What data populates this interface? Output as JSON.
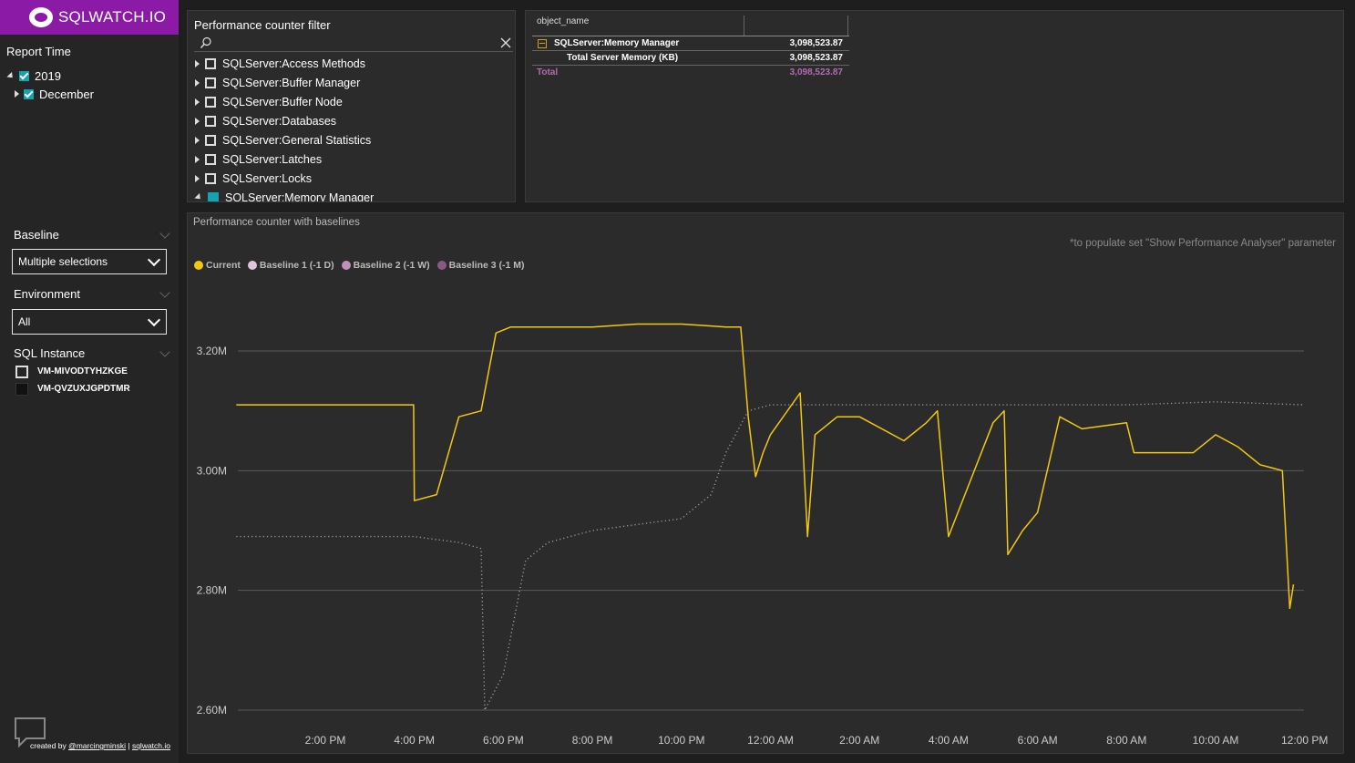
{
  "brand": {
    "name": "SQLWATCH.IO"
  },
  "report_time": {
    "title": "Report Time",
    "year": "2019",
    "month": "December"
  },
  "baseline": {
    "title": "Baseline",
    "value": "Multiple selections"
  },
  "environment": {
    "title": "Environment",
    "value": "All"
  },
  "sql_instance": {
    "title": "SQL Instance",
    "items": [
      "VM-MIVODTYHZKGE",
      "VM-QVZUXJGPDTMR"
    ]
  },
  "footer": {
    "prefix": "created by ",
    "author": "@marcingminski",
    "sep": " | ",
    "site": "sqlwatch.io"
  },
  "counter_filter": {
    "title": "Performance counter filter",
    "search_placeholder": "",
    "items": [
      "SQLServer:Access Methods",
      "SQLServer:Buffer Manager",
      "SQLServer:Buffer Node",
      "SQLServer:Databases",
      "SQLServer:General Statistics",
      "SQLServer:Latches",
      "SQLServer:Locks",
      "SQLServer:Memory Manager"
    ]
  },
  "matrix": {
    "col_header": "object_name",
    "rows": [
      {
        "label": "SQLServer:Memory Manager",
        "value": "3,098,523.87"
      },
      {
        "label": "Total Server Memory (KB)",
        "value": "3,098,523.87"
      }
    ],
    "total_label": "Total",
    "total_value": "3,098,523.87"
  },
  "chart_panel": {
    "title": "Performance counter with baselines",
    "note": "*to populate set \"Show Performance Analyser\" parameter"
  },
  "colors": {
    "current": "#f2c811",
    "baseline1": "#e0c3dc",
    "baseline2": "#c08fbc",
    "baseline3": "#8a5a86",
    "baseline_dots": "#9a9a9a",
    "total": "#b36bb1",
    "accent": "#8b1aa6"
  },
  "chart_data": {
    "type": "line",
    "title": "",
    "xlabel": "",
    "ylabel": "",
    "legend": [
      "Current",
      "Baseline 1 (-1 D)",
      "Baseline 2 (-1 W)",
      "Baseline 3 (-1 M)"
    ],
    "legend_position": "top-left",
    "ylim": [
      2.6,
      3.3
    ],
    "y_unit": "M",
    "y_ticks": [
      "2.60M",
      "2.80M",
      "3.00M",
      "3.20M"
    ],
    "x_ticks": [
      "2:00 PM",
      "4:00 PM",
      "6:00 PM",
      "8:00 PM",
      "10:00 PM",
      "12:00 AM",
      "2:00 AM",
      "4:00 AM",
      "6:00 AM",
      "8:00 AM",
      "10:00 AM",
      "12:00 PM"
    ],
    "grid": true,
    "series": [
      {
        "name": "Current",
        "x": [
          "12:00 PM",
          "2:00 PM",
          "3:59 PM",
          "4:00 PM",
          "4:30 PM",
          "5:00 PM",
          "5:30 PM",
          "5:50 PM",
          "6:10 PM",
          "7:00 PM",
          "8:00 PM",
          "9:00 PM",
          "10:00 PM",
          "11:00 PM",
          "11:20 PM",
          "11:30 PM",
          "11:40 PM",
          "11:50 PM",
          "12:00 AM",
          "12:40 AM",
          "12:50 AM",
          "1:00 AM",
          "1:30 AM",
          "2:00 AM",
          "3:00 AM",
          "3:30 AM",
          "3:45 AM",
          "4:00 AM",
          "5:00 AM",
          "5:15 AM",
          "5:20 AM",
          "5:40 AM",
          "6:00 AM",
          "6:30 AM",
          "7:00 AM",
          "8:00 AM",
          "8:10 AM",
          "9:00 AM",
          "9:30 AM",
          "10:00 AM",
          "10:30 AM",
          "11:00 AM",
          "11:30 AM",
          "11:40 AM",
          "11:45 AM"
        ],
        "values": [
          3.11,
          3.11,
          3.11,
          2.95,
          2.96,
          3.09,
          3.1,
          3.23,
          3.24,
          3.24,
          3.24,
          3.245,
          3.245,
          3.24,
          3.24,
          3.09,
          2.99,
          3.03,
          3.06,
          3.13,
          2.89,
          3.06,
          3.09,
          3.09,
          3.05,
          3.08,
          3.1,
          2.89,
          3.08,
          3.1,
          2.86,
          2.9,
          2.93,
          3.09,
          3.07,
          3.08,
          3.03,
          3.03,
          3.03,
          3.06,
          3.04,
          3.01,
          3.0,
          2.77,
          2.81
        ]
      },
      {
        "name": "Baseline 1 (-1 D)",
        "x": [
          "12:00 PM",
          "2:00 PM",
          "4:00 PM",
          "5:00 PM",
          "5:30 PM",
          "5:35 PM",
          "6:00 PM",
          "6:30 PM",
          "7:00 PM",
          "8:00 PM",
          "9:00 PM",
          "10:00 PM",
          "10:30 PM",
          "10:40 PM",
          "11:00 PM",
          "11:30 PM",
          "12:00 AM",
          "2:00 AM",
          "4:00 AM",
          "6:00 AM",
          "8:00 AM",
          "10:00 AM",
          "12:00 PM"
        ],
        "values": [
          2.89,
          2.89,
          2.89,
          2.88,
          2.87,
          2.6,
          2.66,
          2.85,
          2.88,
          2.9,
          2.91,
          2.92,
          2.95,
          2.96,
          3.03,
          3.1,
          3.11,
          3.11,
          3.11,
          3.11,
          3.11,
          3.115,
          3.11
        ]
      }
    ]
  }
}
